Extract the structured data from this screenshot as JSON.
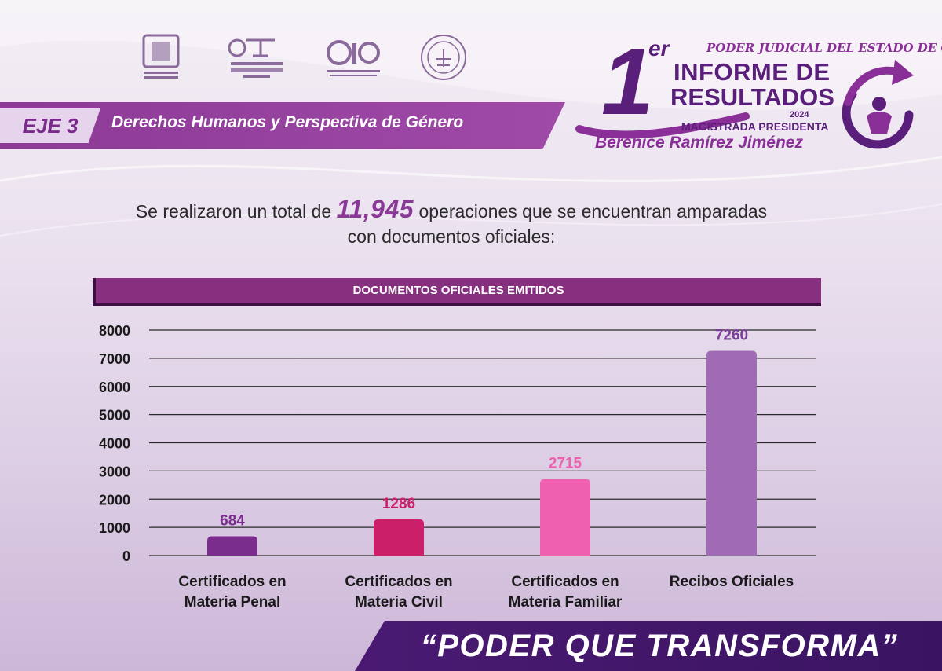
{
  "header": {
    "eje_label": "EJE 3",
    "eje_title": "Derechos Humanos y Perspectiva de Género",
    "logos": [
      {
        "name": "poder-judicial-logo-icon",
        "text": "PODER JUDICIAL"
      },
      {
        "name": "tribunal-superior-logo-icon",
        "text": "TRIBUNAL SUPERIOR DE JUSTICIA OAXACA"
      },
      {
        "name": "cjo-logo-icon",
        "text": "CJO"
      },
      {
        "name": "round-seal-logo-icon",
        "text": ""
      }
    ]
  },
  "brand": {
    "court_name": "PODER JUDICIAL DEL ESTADO DE OAXACA",
    "number": "1",
    "ordinal": "er",
    "line1": "INFORME DE",
    "line2": "RESULTADOS",
    "year": "2024",
    "role": "MAGISTRADA PRESIDENTA",
    "name": "Berenice Ramírez Jiménez"
  },
  "summary": {
    "before": "Se realizaron un total de ",
    "total": "11,945",
    "after": " operaciones que se encuentran amparadas",
    "line2": "con documentos oficiales:"
  },
  "colors": {
    "purple_dark": "#86307f",
    "bar_1": "#7b2d8e",
    "bar_2": "#cc1f6a",
    "bar_3": "#f060b0",
    "bar_4": "#a06bb4",
    "label_1": "#7b2d8e",
    "label_2": "#cc1f6a",
    "label_3": "#f060b0",
    "label_4": "#7b3f9a"
  },
  "chart_data": {
    "type": "bar",
    "title": "DOCUMENTOS OFICIALES EMITIDOS",
    "categories": [
      [
        "Certificados en",
        "Materia Penal"
      ],
      [
        "Certificados en",
        "Materia Civil"
      ],
      [
        "Certificados en",
        "Materia Familiar"
      ],
      [
        "Recibos Oficiales"
      ]
    ],
    "values": [
      684,
      1286,
      2715,
      7260
    ],
    "data_labels": [
      "684",
      "1286",
      "2715",
      "7260"
    ],
    "yticks": [
      "0",
      "1000",
      "2000",
      "3000",
      "4000",
      "5000",
      "6000",
      "7000",
      "8000"
    ],
    "ylim": [
      0,
      8000
    ],
    "grid": true,
    "xlabel": "",
    "ylabel": ""
  },
  "footer": {
    "slogan": "“PODER QUE TRANSFORMA”"
  }
}
